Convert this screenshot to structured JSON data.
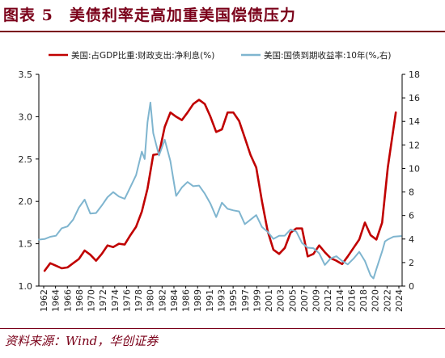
{
  "title": "图表 5　美债利率走高加重美国偿债压力",
  "source": "资料来源：Wind，华创证券",
  "colors": {
    "title": "#7a0019",
    "series_red": "#c00000",
    "series_blue": "#7fb5cf",
    "axis": "#000000"
  },
  "chart_data": {
    "type": "line",
    "x_range": [
      1962,
      2025.5
    ],
    "x_ticks": [
      "1962",
      "1964",
      "1966",
      "1968",
      "1970",
      "1972",
      "1974",
      "1976",
      "1978",
      "1980",
      "1982",
      "1984",
      "1986",
      "1989",
      "1991",
      "1993",
      "1995",
      "1997",
      "1999",
      "2001",
      "2003",
      "2005",
      "2007",
      "2009",
      "2012",
      "2014",
      "2016",
      "2018",
      "2020",
      "2022",
      "2024"
    ],
    "y_left": {
      "range": [
        1.0,
        3.5
      ],
      "ticks": [
        "1.0",
        "1.5",
        "2.0",
        "2.5",
        "3.0",
        "3.5"
      ]
    },
    "y_right": {
      "range": [
        0,
        18
      ],
      "ticks": [
        "0",
        "2",
        "4",
        "6",
        "8",
        "10",
        "12",
        "14",
        "16",
        "18"
      ]
    },
    "legend_position": "top",
    "series": [
      {
        "name": "美国:占GDP比重:财政支出:净利息(%)",
        "axis": "left",
        "color": "#c00000",
        "x": [
          1963,
          1964,
          1965,
          1966,
          1967,
          1968,
          1969,
          1970,
          1971,
          1972,
          1973,
          1974,
          1975,
          1976,
          1977,
          1978,
          1979,
          1980,
          1981,
          1982,
          1983,
          1984,
          1985,
          1986,
          1987,
          1988,
          1989,
          1990,
          1991,
          1992,
          1993,
          1994,
          1995,
          1996,
          1997,
          1998,
          1999,
          2000,
          2001,
          2002,
          2003,
          2004,
          2005,
          2006,
          2007,
          2008,
          2009,
          2010,
          2011,
          2012,
          2013,
          2014,
          2015,
          2016,
          2017,
          2018,
          2019,
          2020,
          2021,
          2022,
          2023,
          2024.4
        ],
        "y": [
          1.18,
          1.27,
          1.24,
          1.21,
          1.22,
          1.27,
          1.32,
          1.42,
          1.37,
          1.3,
          1.38,
          1.48,
          1.46,
          1.5,
          1.49,
          1.6,
          1.7,
          1.88,
          2.15,
          2.55,
          2.56,
          2.88,
          3.05,
          3.0,
          2.96,
          3.05,
          3.15,
          3.2,
          3.15,
          3.0,
          2.82,
          2.85,
          3.05,
          3.05,
          2.95,
          2.75,
          2.55,
          2.4,
          2.0,
          1.65,
          1.43,
          1.38,
          1.45,
          1.63,
          1.68,
          1.68,
          1.35,
          1.38,
          1.48,
          1.4,
          1.33,
          1.3,
          1.26,
          1.35,
          1.45,
          1.55,
          1.75,
          1.6,
          1.55,
          1.75,
          2.4,
          3.05
        ]
      },
      {
        "name": "美国:国债到期收益率:10年(%,右)",
        "axis": "right",
        "color": "#7fb5cf",
        "x": [
          1962,
          1963,
          1964,
          1965,
          1966,
          1967,
          1968,
          1969,
          1970,
          1971,
          1972,
          1973,
          1974,
          1975,
          1976,
          1977,
          1978,
          1979,
          1980,
          1980.5,
          1981,
          1981.5,
          1982,
          1983,
          1984,
          1985,
          1986,
          1987,
          1988,
          1989,
          1990,
          1991,
          1992,
          1993,
          1994,
          1995,
          1996,
          1997,
          1998,
          1999,
          2000,
          2001,
          2002,
          2003,
          2004,
          2005,
          2006,
          2007,
          2008,
          2009,
          2010,
          2011,
          2012,
          2013,
          2014,
          2015,
          2016,
          2017,
          2018,
          2019,
          2020,
          2020.5,
          2021,
          2022,
          2022.5,
          2023,
          2024,
          2025.3
        ],
        "y": [
          3.95,
          4.0,
          4.19,
          4.28,
          4.92,
          5.07,
          5.65,
          6.67,
          7.35,
          6.16,
          6.21,
          6.85,
          7.56,
          7.99,
          7.61,
          7.42,
          8.41,
          9.43,
          11.43,
          10.8,
          13.92,
          15.6,
          13.0,
          11.1,
          12.44,
          10.62,
          7.67,
          8.39,
          8.85,
          8.49,
          8.55,
          7.86,
          7.01,
          5.87,
          7.09,
          6.57,
          6.44,
          6.35,
          5.26,
          5.65,
          6.03,
          5.02,
          4.61,
          4.01,
          4.27,
          4.29,
          4.8,
          4.63,
          3.66,
          3.26,
          3.22,
          2.78,
          1.8,
          2.35,
          2.54,
          2.14,
          1.84,
          2.33,
          2.91,
          2.14,
          0.89,
          0.65,
          1.45,
          2.95,
          3.8,
          3.96,
          4.2,
          4.25
        ]
      }
    ]
  }
}
